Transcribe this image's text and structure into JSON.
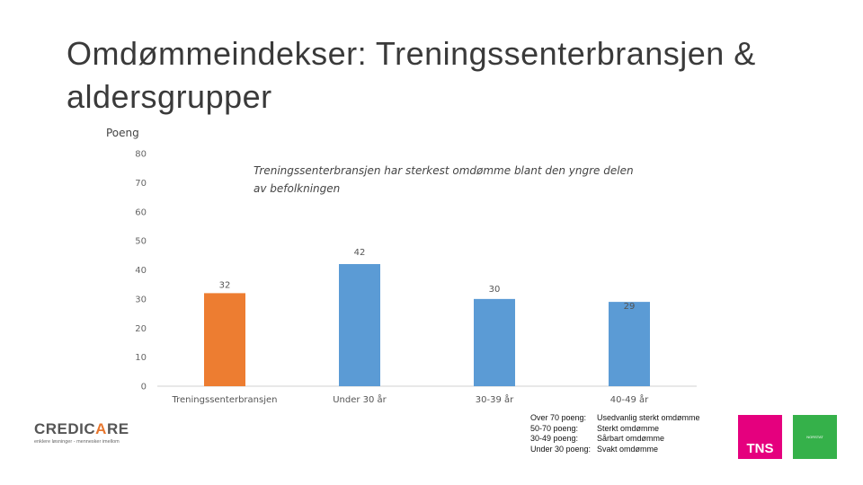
{
  "slide": {
    "title": "Omdømmeindekser: Treningssenterbransjen & aldersgrupper"
  },
  "chart_data": {
    "type": "bar",
    "title": "",
    "ylabel": "Poeng",
    "xlabel": "",
    "ylim": [
      0,
      80
    ],
    "yticks": [
      0,
      10,
      20,
      30,
      40,
      50,
      60,
      70,
      80
    ],
    "categories": [
      "Treningssenterbransjen",
      "Under 30 år",
      "30-39 år",
      "40-49 år"
    ],
    "values": [
      32,
      42,
      30,
      29
    ],
    "bar_colors": [
      "#ed7d31",
      "#5b9bd5",
      "#5b9bd5",
      "#5b9bd5"
    ],
    "annotation": [
      "Treningssenterbransjen har sterkest omdømme blant den yngre delen",
      "av befolkningen"
    ],
    "grid": false
  },
  "legend": [
    {
      "range": "Over 70 poeng:",
      "text": "Usedvanlig sterkt omdømme"
    },
    {
      "range": "50-70 poeng:",
      "text": "Sterkt omdømme"
    },
    {
      "range": "30-49 poeng:",
      "text": "Sårbart omdømme"
    },
    {
      "range": "Under 30 poeng:",
      "text": "Svakt omdømme"
    }
  ],
  "logos": {
    "credicare_word_a": "CREDIC",
    "credicare_word_b": "A",
    "credicare_word_c": "RE",
    "credicare_sub": "enklere løsninger - mennesker imellom",
    "tns": "TNS",
    "partner": "NORSTAT"
  },
  "colors": {
    "orange": "#ed7d31",
    "blue": "#5b9bd5",
    "tns_magenta": "#e5007e",
    "green": "#35b14a"
  }
}
